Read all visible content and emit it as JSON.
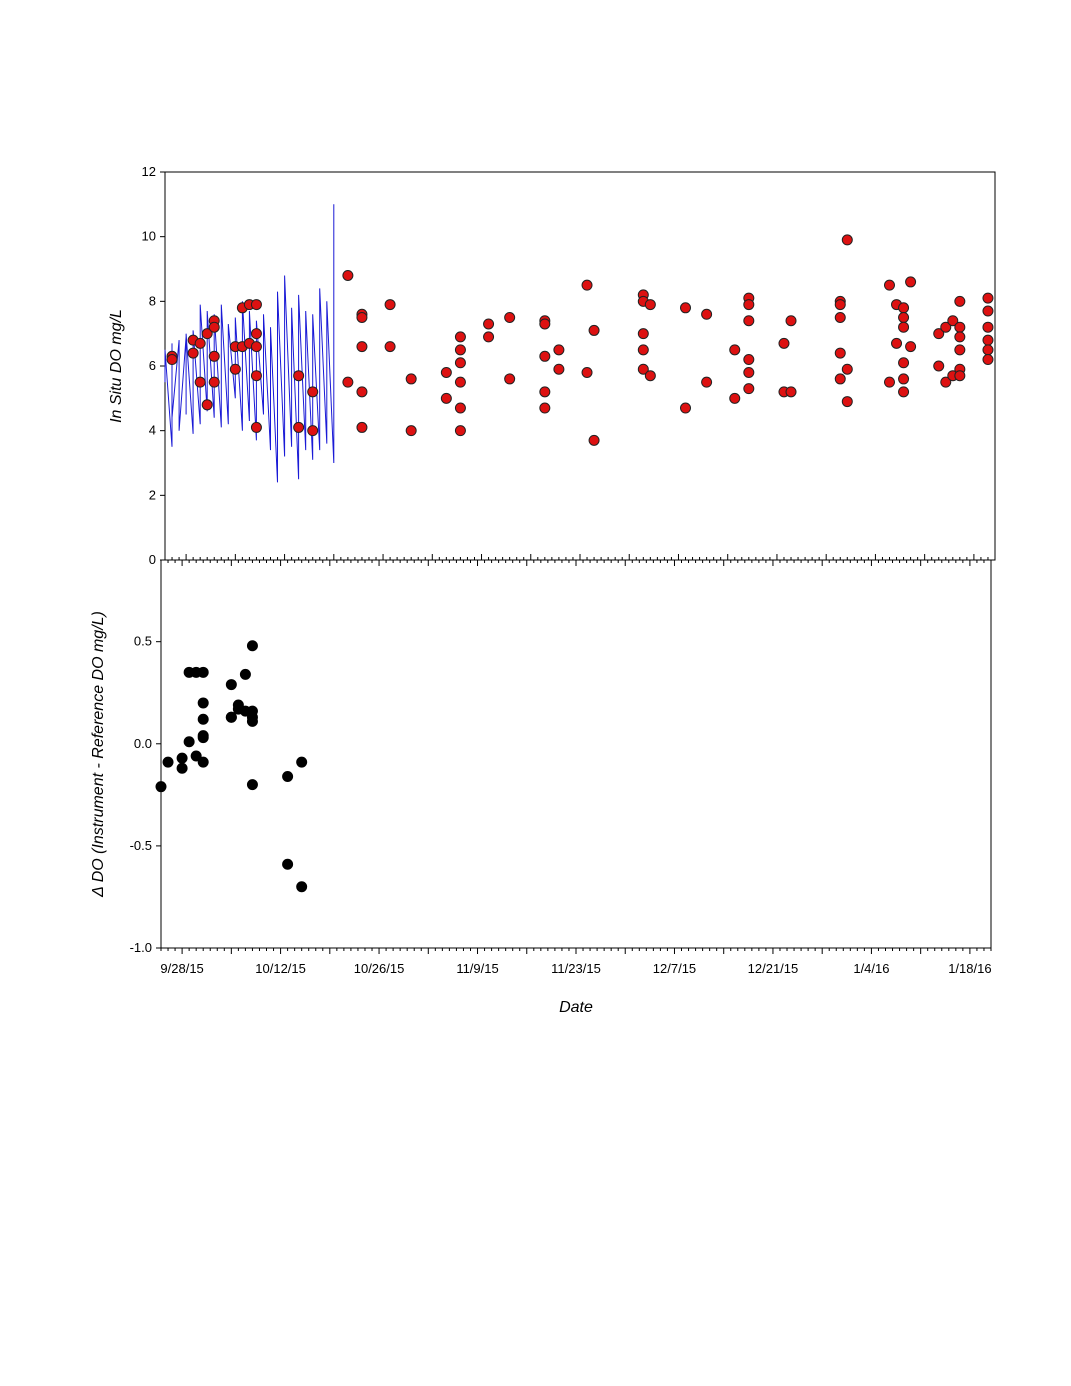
{
  "chart_data": [
    {
      "type": "line+scatter",
      "title": "",
      "xlabel": "",
      "ylabel": "In Situ DO mg/L",
      "ylim": [
        0,
        12
      ],
      "yticks": [
        0,
        2,
        4,
        6,
        8,
        10,
        12
      ],
      "xlim": [
        "2015-09-25",
        "2016-01-21"
      ],
      "grid": false,
      "legend": "none",
      "colors": {
        "line": "#1a1ad6",
        "points": "#dd1111",
        "point_edge": "#222222"
      },
      "series": [
        {
          "kind": "line",
          "points": [
            [
              "2015-09-25",
              5.5
            ],
            [
              "2015-09-25",
              6.5
            ],
            [
              "2015-09-26",
              3.5
            ],
            [
              "2015-09-26",
              6.7
            ],
            [
              "2015-09-26",
              4.4
            ],
            [
              "2015-09-27",
              6.8
            ],
            [
              "2015-09-27",
              4.0
            ],
            [
              "2015-09-28",
              6.9
            ],
            [
              "2015-09-28",
              4.5
            ],
            [
              "2015-09-28",
              7.0
            ],
            [
              "2015-09-29",
              3.9
            ],
            [
              "2015-09-29",
              7.1
            ],
            [
              "2015-09-30",
              4.2
            ],
            [
              "2015-09-30",
              7.9
            ],
            [
              "2015-10-01",
              4.6
            ],
            [
              "2015-10-01",
              7.7
            ],
            [
              "2015-10-02",
              4.4
            ],
            [
              "2015-10-02",
              7.6
            ],
            [
              "2015-10-03",
              4.1
            ],
            [
              "2015-10-03",
              7.9
            ],
            [
              "2015-10-04",
              4.2
            ],
            [
              "2015-10-04",
              7.3
            ],
            [
              "2015-10-05",
              5.0
            ],
            [
              "2015-10-05",
              7.5
            ],
            [
              "2015-10-06",
              4.0
            ],
            [
              "2015-10-06",
              8.0
            ],
            [
              "2015-10-07",
              4.3
            ],
            [
              "2015-10-07",
              7.7
            ],
            [
              "2015-10-08",
              3.7
            ],
            [
              "2015-10-08",
              7.4
            ],
            [
              "2015-10-09",
              4.5
            ],
            [
              "2015-10-09",
              7.6
            ],
            [
              "2015-10-10",
              3.4
            ],
            [
              "2015-10-10",
              7.2
            ],
            [
              "2015-10-11",
              2.4
            ],
            [
              "2015-10-11",
              8.3
            ],
            [
              "2015-10-12",
              3.2
            ],
            [
              "2015-10-12",
              8.8
            ],
            [
              "2015-10-13",
              3.5
            ],
            [
              "2015-10-13",
              7.8
            ],
            [
              "2015-10-14",
              2.5
            ],
            [
              "2015-10-14",
              8.2
            ],
            [
              "2015-10-15",
              3.4
            ],
            [
              "2015-10-15",
              7.7
            ],
            [
              "2015-10-16",
              3.1
            ],
            [
              "2015-10-16",
              7.6
            ],
            [
              "2015-10-17",
              3.4
            ],
            [
              "2015-10-17",
              8.4
            ],
            [
              "2015-10-18",
              3.6
            ],
            [
              "2015-10-18",
              8.0
            ],
            [
              "2015-10-19",
              3.0
            ],
            [
              "2015-10-19",
              11.0
            ]
          ]
        },
        {
          "kind": "scatter",
          "points": [
            [
              "2015-09-26",
              6.3
            ],
            [
              "2015-09-26",
              6.2
            ],
            [
              "2015-09-29",
              6.8
            ],
            [
              "2015-09-29",
              6.4
            ],
            [
              "2015-09-30",
              5.5
            ],
            [
              "2015-09-30",
              6.7
            ],
            [
              "2015-10-01",
              7.0
            ],
            [
              "2015-10-01",
              4.8
            ],
            [
              "2015-10-02",
              7.4
            ],
            [
              "2015-10-02",
              7.2
            ],
            [
              "2015-10-02",
              6.3
            ],
            [
              "2015-10-02",
              5.5
            ],
            [
              "2015-10-05",
              5.9
            ],
            [
              "2015-10-05",
              6.6
            ],
            [
              "2015-10-06",
              7.8
            ],
            [
              "2015-10-06",
              6.6
            ],
            [
              "2015-10-07",
              6.7
            ],
            [
              "2015-10-07",
              7.9
            ],
            [
              "2015-10-08",
              6.6
            ],
            [
              "2015-10-08",
              5.7
            ],
            [
              "2015-10-08",
              4.1
            ],
            [
              "2015-10-08",
              7.0
            ],
            [
              "2015-10-08",
              7.9
            ],
            [
              "2015-10-14",
              5.7
            ],
            [
              "2015-10-14",
              4.1
            ],
            [
              "2015-10-16",
              5.2
            ],
            [
              "2015-10-16",
              4.0
            ],
            [
              "2015-10-21",
              8.8
            ],
            [
              "2015-10-21",
              5.5
            ],
            [
              "2015-10-23",
              7.6
            ],
            [
              "2015-10-23",
              7.5
            ],
            [
              "2015-10-23",
              6.6
            ],
            [
              "2015-10-23",
              5.2
            ],
            [
              "2015-10-23",
              4.1
            ],
            [
              "2015-10-27",
              7.9
            ],
            [
              "2015-10-27",
              6.6
            ],
            [
              "2015-10-30",
              5.6
            ],
            [
              "2015-10-30",
              4.0
            ],
            [
              "2015-11-04",
              5.8
            ],
            [
              "2015-11-04",
              5.0
            ],
            [
              "2015-11-06",
              6.9
            ],
            [
              "2015-11-06",
              6.5
            ],
            [
              "2015-11-06",
              6.1
            ],
            [
              "2015-11-06",
              5.5
            ],
            [
              "2015-11-06",
              4.7
            ],
            [
              "2015-11-06",
              4.0
            ],
            [
              "2015-11-10",
              7.3
            ],
            [
              "2015-11-10",
              6.9
            ],
            [
              "2015-11-13",
              7.5
            ],
            [
              "2015-11-13",
              5.6
            ],
            [
              "2015-11-18",
              7.4
            ],
            [
              "2015-11-18",
              7.3
            ],
            [
              "2015-11-18",
              6.3
            ],
            [
              "2015-11-18",
              5.2
            ],
            [
              "2015-11-18",
              4.7
            ],
            [
              "2015-11-20",
              6.5
            ],
            [
              "2015-11-20",
              5.9
            ],
            [
              "2015-11-24",
              8.5
            ],
            [
              "2015-11-24",
              5.8
            ],
            [
              "2015-11-25",
              7.1
            ],
            [
              "2015-11-25",
              3.7
            ],
            [
              "2015-12-02",
              8.2
            ],
            [
              "2015-12-02",
              8.0
            ],
            [
              "2015-12-02",
              7.0
            ],
            [
              "2015-12-02",
              6.5
            ],
            [
              "2015-12-02",
              5.9
            ],
            [
              "2015-12-03",
              7.9
            ],
            [
              "2015-12-03",
              5.7
            ],
            [
              "2015-12-08",
              7.8
            ],
            [
              "2015-12-08",
              4.7
            ],
            [
              "2015-12-11",
              7.6
            ],
            [
              "2015-12-11",
              5.5
            ],
            [
              "2015-12-15",
              6.5
            ],
            [
              "2015-12-15",
              5.0
            ],
            [
              "2015-12-17",
              8.1
            ],
            [
              "2015-12-17",
              7.9
            ],
            [
              "2015-12-17",
              7.4
            ],
            [
              "2015-12-17",
              6.2
            ],
            [
              "2015-12-17",
              5.8
            ],
            [
              "2015-12-17",
              5.3
            ],
            [
              "2015-12-22",
              6.7
            ],
            [
              "2015-12-22",
              5.2
            ],
            [
              "2015-12-23",
              7.4
            ],
            [
              "2015-12-23",
              5.2
            ],
            [
              "2015-12-30",
              8.0
            ],
            [
              "2015-12-30",
              7.9
            ],
            [
              "2015-12-30",
              7.5
            ],
            [
              "2015-12-30",
              6.4
            ],
            [
              "2015-12-30",
              5.6
            ],
            [
              "2015-12-31",
              9.9
            ],
            [
              "2015-12-31",
              5.9
            ],
            [
              "2015-12-31",
              4.9
            ],
            [
              "2016-01-06",
              8.5
            ],
            [
              "2016-01-06",
              5.5
            ],
            [
              "2016-01-07",
              7.9
            ],
            [
              "2016-01-07",
              6.7
            ],
            [
              "2016-01-08",
              7.8
            ],
            [
              "2016-01-08",
              7.5
            ],
            [
              "2016-01-08",
              7.2
            ],
            [
              "2016-01-08",
              6.1
            ],
            [
              "2016-01-08",
              5.6
            ],
            [
              "2016-01-08",
              5.2
            ],
            [
              "2016-01-09",
              8.6
            ],
            [
              "2016-01-09",
              6.6
            ],
            [
              "2016-01-13",
              7.0
            ],
            [
              "2016-01-13",
              6.0
            ],
            [
              "2016-01-14",
              7.2
            ],
            [
              "2016-01-14",
              5.5
            ],
            [
              "2016-01-15",
              7.4
            ],
            [
              "2016-01-15",
              5.7
            ],
            [
              "2016-01-16",
              8.0
            ],
            [
              "2016-01-16",
              7.2
            ],
            [
              "2016-01-16",
              6.9
            ],
            [
              "2016-01-16",
              6.5
            ],
            [
              "2016-01-16",
              5.9
            ],
            [
              "2016-01-16",
              5.7
            ],
            [
              "2016-01-20",
              8.1
            ],
            [
              "2016-01-20",
              7.7
            ],
            [
              "2016-01-20",
              7.2
            ],
            [
              "2016-01-20",
              6.8
            ],
            [
              "2016-01-20",
              6.5
            ],
            [
              "2016-01-20",
              6.2
            ]
          ]
        }
      ]
    },
    {
      "type": "scatter",
      "title": "",
      "xlabel": "Date",
      "ylabel": "Δ DO (Instrument - Reference DO mg/L)",
      "ylim": [
        -1.0,
        0.9
      ],
      "yticks": [
        -1.0,
        -0.5,
        0.0,
        0.5
      ],
      "ytick_labels": [
        "-1.0",
        "-0.5",
        "0.0",
        "0.5"
      ],
      "xlim": [
        "2015-09-25",
        "2016-01-21"
      ],
      "xticks": [
        "2015-09-28",
        "2015-10-12",
        "2015-10-26",
        "2015-11-09",
        "2015-11-23",
        "2015-12-07",
        "2015-12-21",
        "2016-01-04",
        "2016-01-18"
      ],
      "xtick_labels": [
        "9/28/15",
        "10/12/15",
        "10/26/15",
        "11/9/15",
        "11/23/15",
        "12/7/15",
        "12/21/15",
        "1/4/16",
        "1/18/16"
      ],
      "grid": false,
      "legend": "none",
      "colors": {
        "points": "#000000"
      },
      "series": [
        {
          "kind": "scatter",
          "points": [
            [
              "2015-09-25",
              -0.21
            ],
            [
              "2015-09-26",
              -0.09
            ],
            [
              "2015-09-28",
              -0.07
            ],
            [
              "2015-09-28",
              -0.12
            ],
            [
              "2015-09-29",
              0.01
            ],
            [
              "2015-09-29",
              0.35
            ],
            [
              "2015-09-30",
              0.35
            ],
            [
              "2015-09-30",
              -0.06
            ],
            [
              "2015-10-01",
              0.35
            ],
            [
              "2015-10-01",
              0.2
            ],
            [
              "2015-10-01",
              0.12
            ],
            [
              "2015-10-01",
              0.04
            ],
            [
              "2015-10-01",
              0.03
            ],
            [
              "2015-10-01",
              -0.09
            ],
            [
              "2015-10-05",
              0.29
            ],
            [
              "2015-10-05",
              0.13
            ],
            [
              "2015-10-05",
              0.13
            ],
            [
              "2015-10-06",
              0.19
            ],
            [
              "2015-10-06",
              0.17
            ],
            [
              "2015-10-07",
              0.34
            ],
            [
              "2015-10-07",
              0.16
            ],
            [
              "2015-10-08",
              0.48
            ],
            [
              "2015-10-08",
              0.16
            ],
            [
              "2015-10-08",
              0.13
            ],
            [
              "2015-10-08",
              0.11
            ],
            [
              "2015-10-08",
              -0.2
            ],
            [
              "2015-10-13",
              -0.16
            ],
            [
              "2015-10-13",
              -0.59
            ],
            [
              "2015-10-15",
              -0.09
            ],
            [
              "2015-10-15",
              -0.7
            ]
          ]
        }
      ]
    }
  ]
}
